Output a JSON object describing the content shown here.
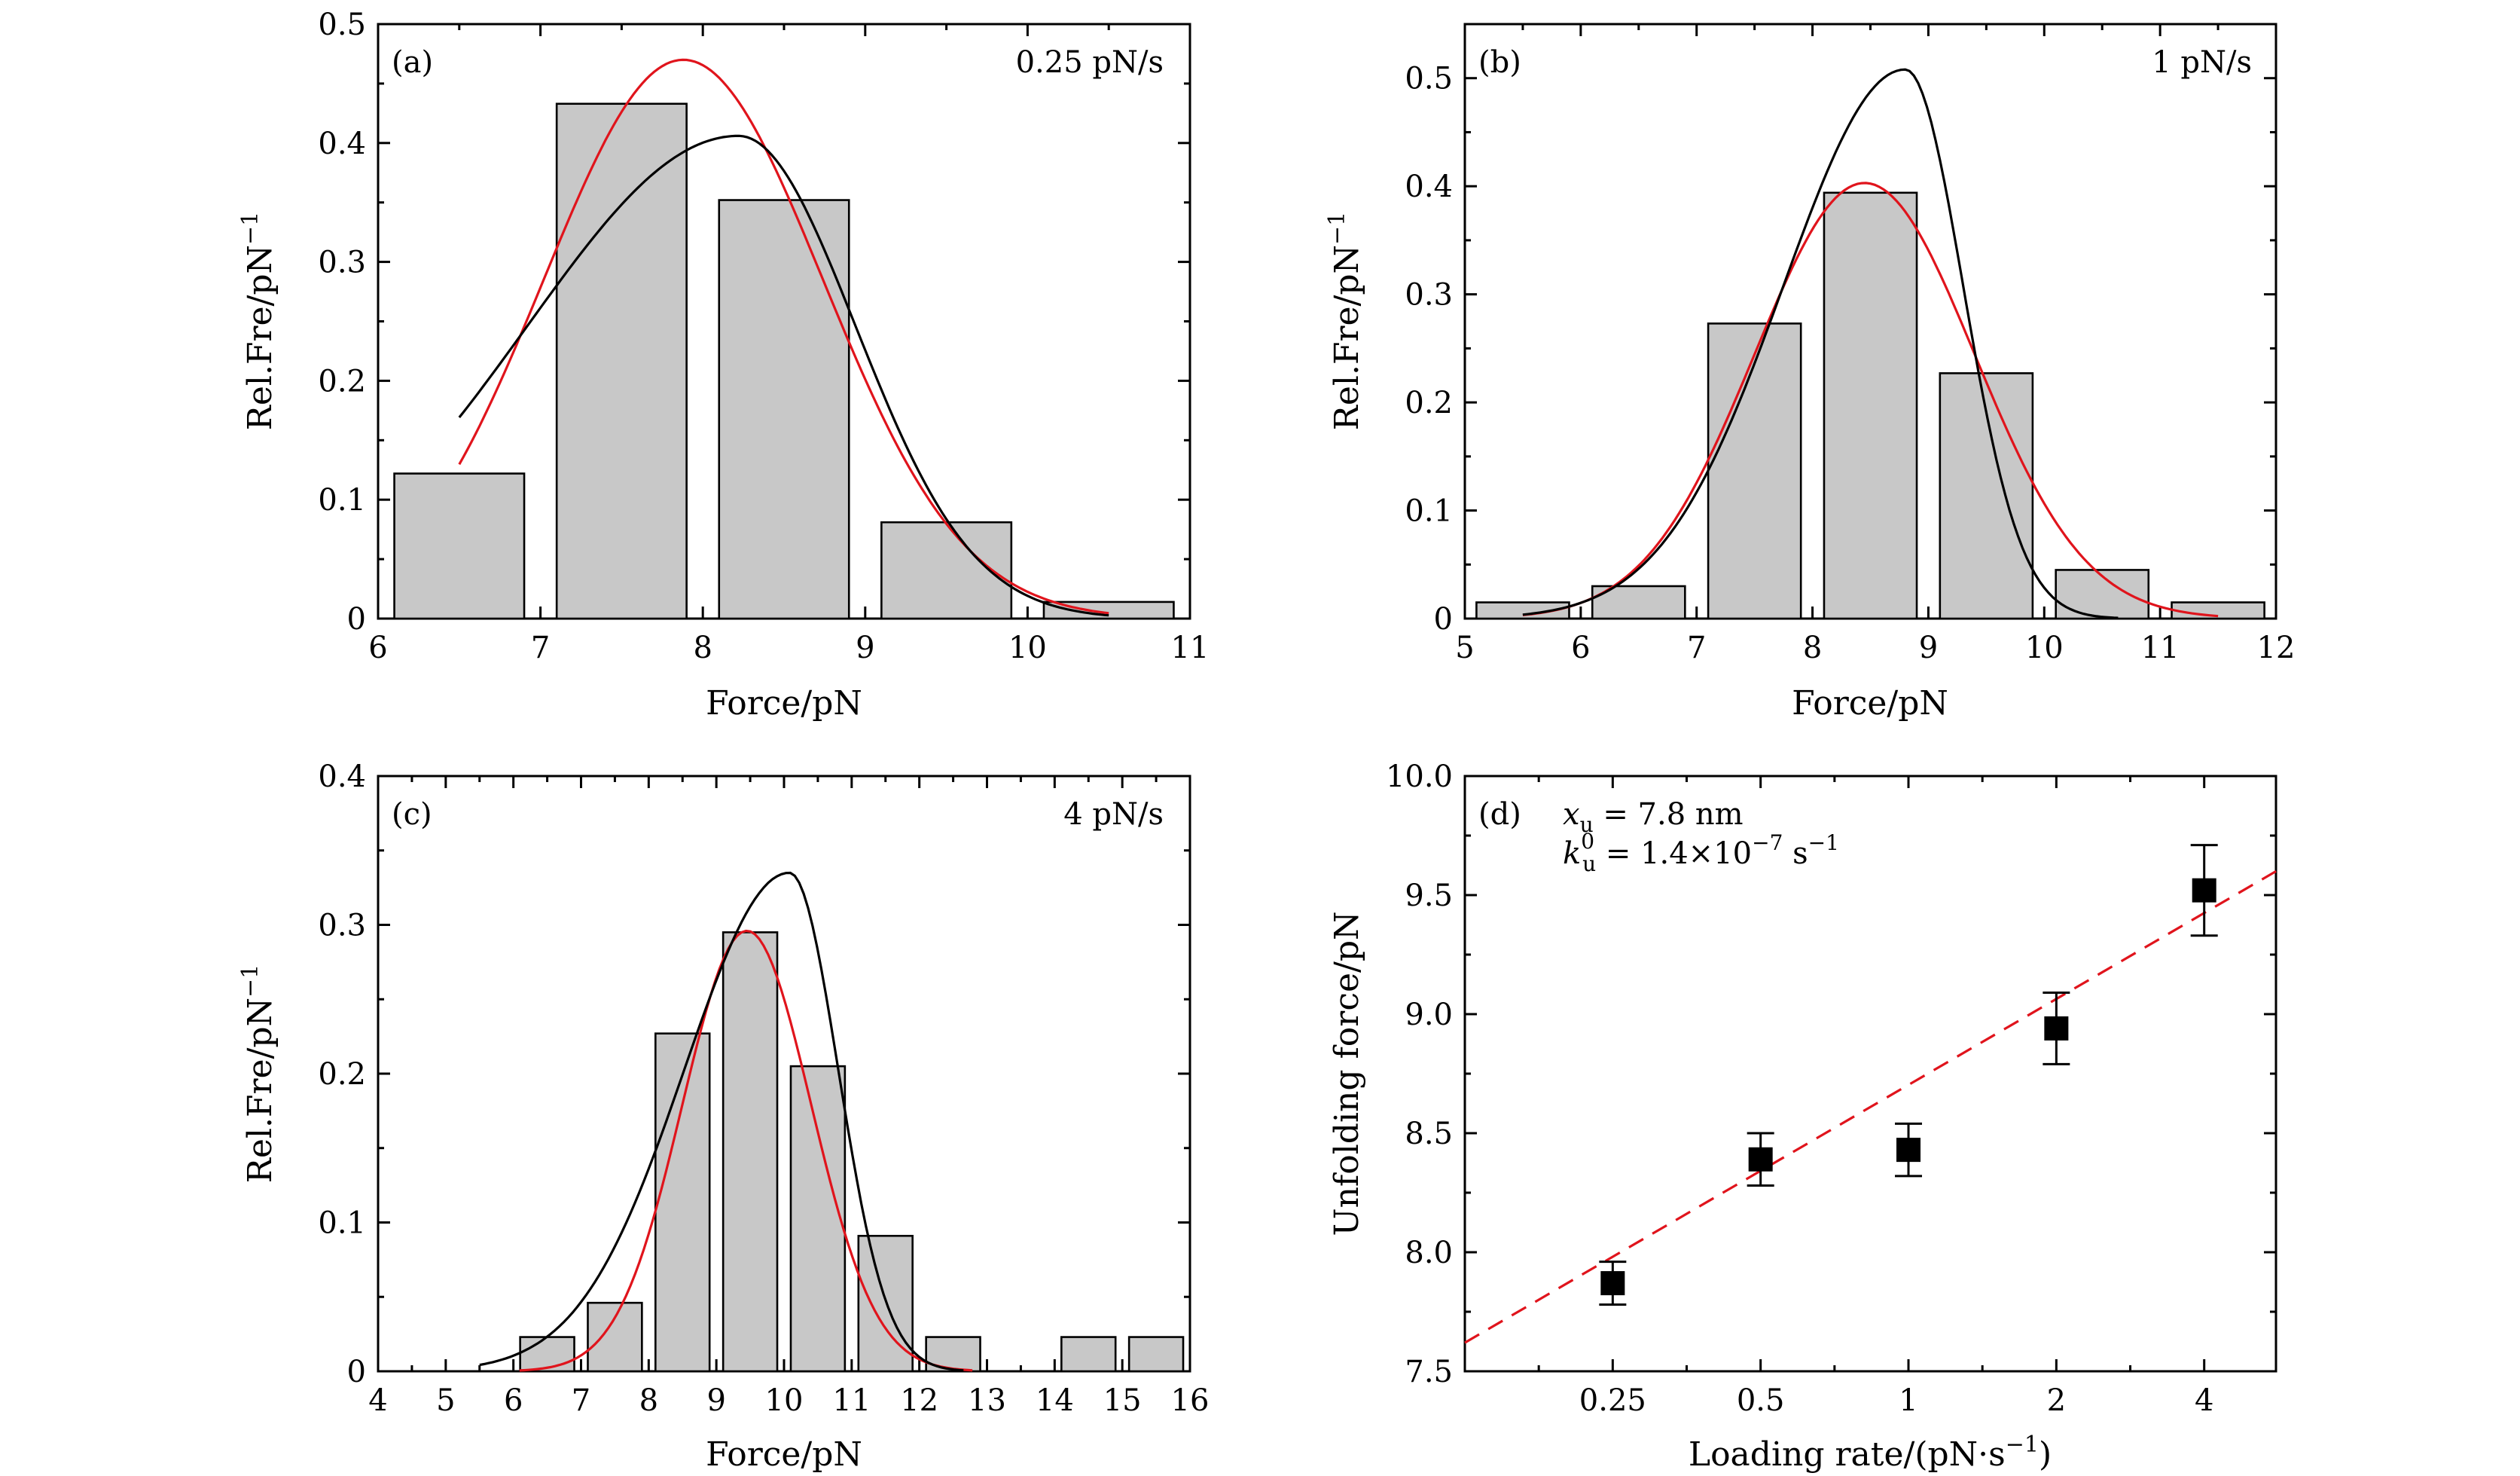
{
  "figure": {
    "colors": {
      "bar_fill": "#c8c8c8",
      "black_curve": "#000000",
      "red_curve": "#e0141c"
    }
  },
  "chart_data": [
    {
      "type": "bar",
      "panel": "(a)",
      "annotation": "0.25 pN/s",
      "xlabel": "Force/pN",
      "ylabel": "Rel.Fre/pN",
      "ylabel_sup": "−1",
      "xlim": [
        6,
        11
      ],
      "ylim": [
        0,
        0.5
      ],
      "xticks": [
        "6",
        "7",
        "8",
        "9",
        "10",
        "11"
      ],
      "yticks": [
        "0",
        "0.1",
        "0.2",
        "0.3",
        "0.4",
        "0.5"
      ],
      "bar_centers": [
        6.5,
        7.5,
        8.5,
        9.5,
        10.5
      ],
      "bar_width": 0.8,
      "values": [
        0.122,
        0.433,
        0.352,
        0.081,
        0.014
      ],
      "curves": {
        "red": {
          "model": "gaussian",
          "amp": 0.47,
          "mu": 7.88,
          "sigma": 0.86,
          "range": [
            6.5,
            10.5
          ]
        },
        "black": {
          "model": "skewed",
          "amp": 0.406,
          "peak": 8.22,
          "sigma_left": 1.3,
          "sigma_right": 0.72,
          "range": [
            6.5,
            10.5
          ]
        }
      }
    },
    {
      "type": "bar",
      "panel": "(b)",
      "annotation": "1 pN/s",
      "xlabel": "Force/pN",
      "ylabel": "Rel.Fre/pN",
      "ylabel_sup": "−1",
      "xlim": [
        5,
        12
      ],
      "ylim": [
        0,
        0.55
      ],
      "xticks": [
        "5",
        "6",
        "7",
        "8",
        "9",
        "10",
        "11",
        "12"
      ],
      "yticks": [
        "0",
        "0.1",
        "0.2",
        "0.3",
        "0.4",
        "0.5"
      ],
      "bar_centers": [
        5.5,
        6.5,
        7.5,
        8.5,
        9.5,
        10.5,
        11.5
      ],
      "bar_width": 0.8,
      "values": [
        0.015,
        0.03,
        0.273,
        0.394,
        0.227,
        0.045,
        0.015
      ],
      "curves": {
        "red": {
          "model": "gaussian",
          "amp": 0.403,
          "mu": 8.45,
          "sigma": 0.95,
          "range": [
            5.5,
            11.5
          ]
        },
        "black": {
          "model": "skewed",
          "amp": 0.508,
          "peak": 8.8,
          "sigma_left": 1.05,
          "sigma_right": 0.5,
          "range": [
            5.5,
            11.5
          ]
        }
      }
    },
    {
      "type": "bar",
      "panel": "(c)",
      "annotation": "4 pN/s",
      "xlabel": "Force/pN",
      "ylabel": "Rel.Fre/pN",
      "ylabel_sup": "−1",
      "xlim": [
        4,
        16
      ],
      "ylim": [
        0,
        0.4
      ],
      "xticks": [
        "4",
        "5",
        "6",
        "7",
        "8",
        "9",
        "10",
        "11",
        "12",
        "13",
        "14",
        "15",
        "16"
      ],
      "yticks": [
        "0",
        "0.1",
        "0.2",
        "0.3",
        "0.4"
      ],
      "bar_centers": [
        6.5,
        7.5,
        8.5,
        9.5,
        10.5,
        11.5,
        12.5,
        13.5,
        14.5,
        15.5
      ],
      "bar_width": 0.8,
      "values": [
        0.023,
        0.046,
        0.227,
        0.295,
        0.205,
        0.091,
        0.023,
        0,
        0.023,
        0.023
      ],
      "curves": {
        "red": {
          "model": "gaussian",
          "amp": 0.296,
          "mu": 9.45,
          "sigma": 0.95,
          "range": [
            5.5,
            16
          ]
        },
        "black": {
          "model": "skewed",
          "amp": 0.335,
          "peak": 10.08,
          "sigma_left": 1.55,
          "sigma_right": 0.72,
          "range": [
            5.5,
            16
          ]
        }
      }
    },
    {
      "type": "scatter",
      "panel": "(d)",
      "xlabel": "Loading rate/(pN·s",
      "xlabel_sup": "−1",
      "xlabel_close": ")",
      "ylabel": "Unfolding force/pN",
      "xscale": "log2",
      "xlim": [
        0.125,
        5.6
      ],
      "ylim": [
        7.5,
        10.0
      ],
      "xticks": [
        "0.25",
        "0.5",
        "1",
        "2",
        "4"
      ],
      "xtick_values": [
        0.25,
        0.5,
        1,
        2,
        4
      ],
      "yticks": [
        "7.5",
        "8.0",
        "8.5",
        "9.0",
        "9.5",
        "10.0"
      ],
      "x": [
        0.25,
        0.5,
        1,
        2,
        4
      ],
      "y": [
        7.87,
        8.39,
        8.43,
        8.94,
        9.52
      ],
      "yerr": [
        0.09,
        0.11,
        0.11,
        0.15,
        0.19
      ],
      "fit_line": {
        "style": "dashed",
        "color": "#e0141c",
        "x": [
          0.125,
          5.6
        ],
        "y": [
          7.62,
          9.6
        ]
      },
      "annotation_lines": {
        "xu_symbol": "x",
        "xu_sub": "u",
        "xu_value": " = 7.8 nm",
        "k_symbol": "k",
        "k_sub": "u",
        "k_sup": "0",
        "k_value": " = 1.4×10",
        "k_exp": "−7",
        "k_unit": " s",
        "k_unit_exp": "−1"
      }
    }
  ]
}
